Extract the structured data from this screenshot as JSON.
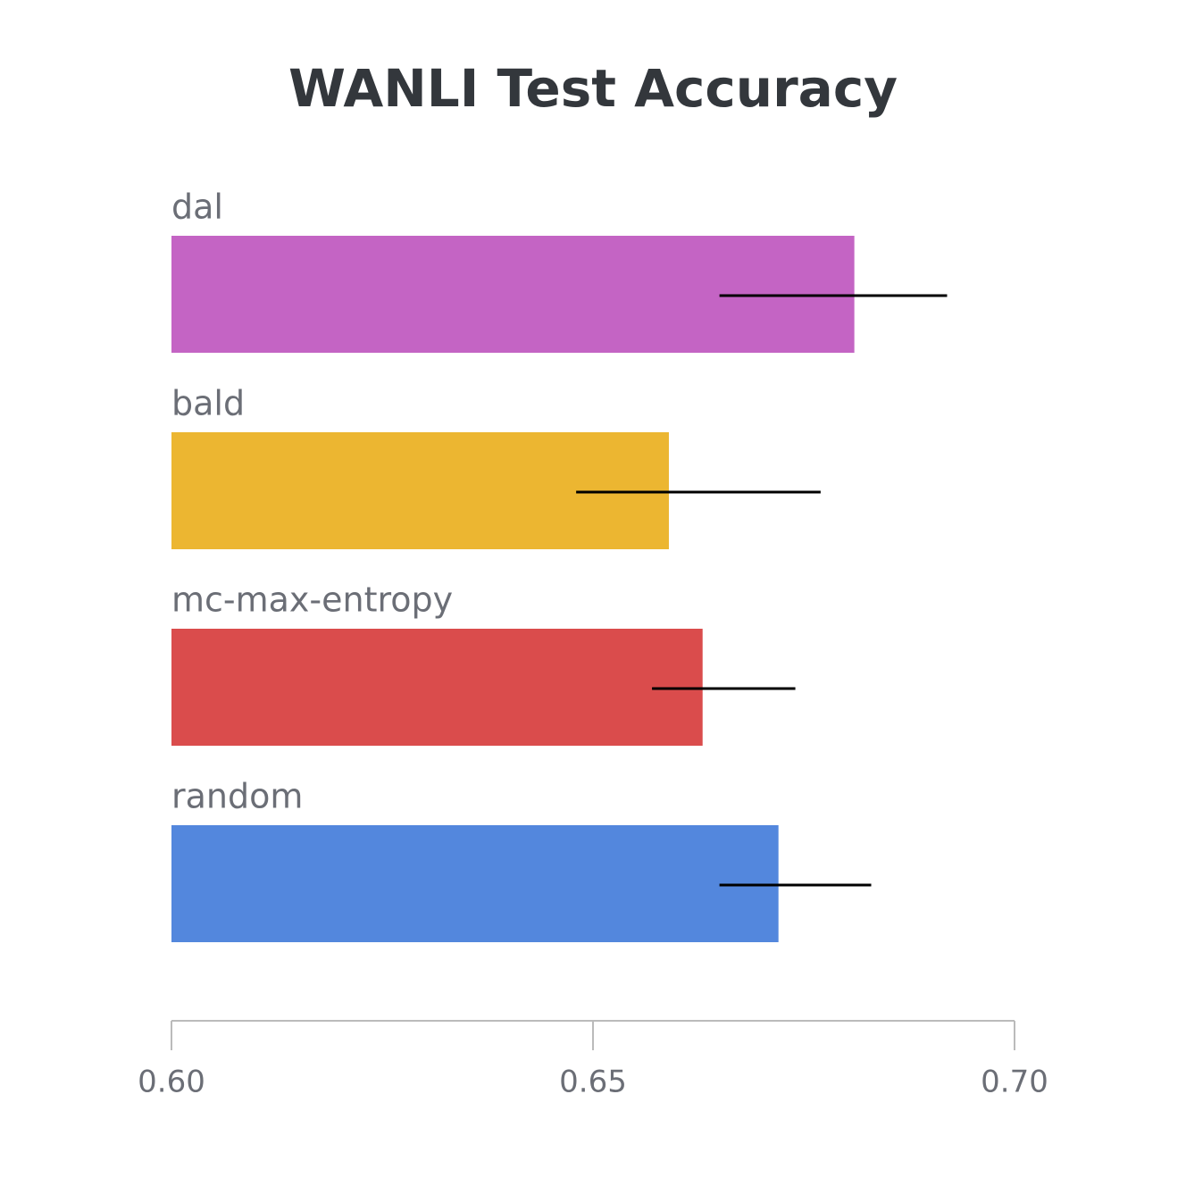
{
  "chart_data": {
    "type": "hbar",
    "title": "WANLI Test Accuracy",
    "categories": [
      "dal",
      "bald",
      "mc-max-entropy",
      "random"
    ],
    "values": [
      0.681,
      0.659,
      0.663,
      0.672
    ],
    "colors": [
      "#c464c4",
      "#ecb631",
      "#da4c4c",
      "#5387dd"
    ],
    "errors": [
      [
        0.665,
        0.692
      ],
      [
        0.648,
        0.677
      ],
      [
        0.657,
        0.674
      ],
      [
        0.665,
        0.683
      ]
    ],
    "xlim": [
      0.6,
      0.7
    ],
    "xticks": [
      {
        "value": 0.6,
        "label": "0.60"
      },
      0.65,
      {
        "value": 0.7,
        "label": "0.70"
      }
    ]
  }
}
